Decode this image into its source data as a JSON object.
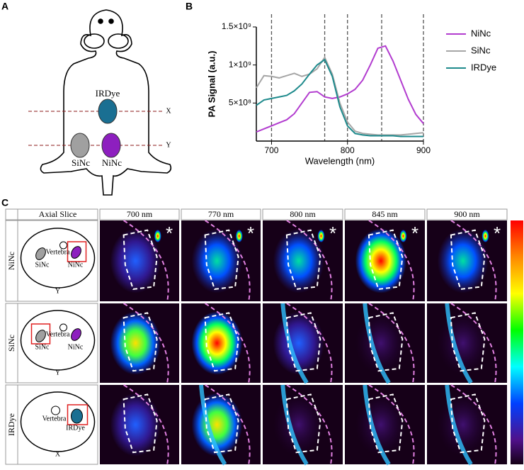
{
  "panel_labels": [
    "A",
    "B",
    "C"
  ],
  "panel_a": {
    "labels": {
      "irdye": "IRDye",
      "sinc": "SiNc",
      "ninc": "NiNc",
      "x": "X",
      "y": "Y"
    }
  },
  "chart_data": {
    "type": "line",
    "ylabel": "PA Signal (a.u.)",
    "xlabel": "Wavelength (nm)",
    "x": [
      680,
      690,
      700,
      710,
      720,
      730,
      740,
      750,
      760,
      770,
      780,
      790,
      800,
      810,
      820,
      830,
      840,
      850,
      860,
      870,
      880,
      890,
      900
    ],
    "series": [
      {
        "name": "NiNc",
        "color": "#b23ccf",
        "values": [
          120000000,
          160000000,
          200000000,
          240000000,
          280000000,
          360000000,
          500000000,
          640000000,
          650000000,
          580000000,
          560000000,
          580000000,
          620000000,
          680000000,
          800000000,
          1000000000,
          1220000000,
          1250000000,
          1050000000,
          800000000,
          550000000,
          350000000,
          230000000
        ]
      },
      {
        "name": "SiNc",
        "color": "#a6a6a6",
        "values": [
          700000000,
          860000000,
          850000000,
          830000000,
          860000000,
          890000000,
          850000000,
          880000000,
          950000000,
          1100000000,
          880000000,
          500000000,
          250000000,
          130000000,
          100000000,
          90000000,
          80000000,
          80000000,
          80000000,
          80000000,
          90000000,
          100000000,
          110000000
        ]
      },
      {
        "name": "IRDye",
        "color": "#1e8a8c",
        "values": [
          470000000,
          540000000,
          560000000,
          580000000,
          600000000,
          660000000,
          750000000,
          880000000,
          1000000000,
          1070000000,
          850000000,
          450000000,
          200000000,
          100000000,
          80000000,
          70000000,
          70000000,
          70000000,
          70000000,
          60000000,
          60000000,
          60000000,
          60000000
        ]
      }
    ],
    "xlim": [
      680,
      900
    ],
    "xticks": [
      700,
      800,
      900
    ],
    "ylim": [
      0,
      1500000000
    ],
    "yticks": [
      {
        "value": 500000000,
        "label": "5×10⁸"
      },
      {
        "value": 1000000000,
        "label": "1×10⁹"
      },
      {
        "value": 1500000000,
        "label": "1.5×10⁹"
      }
    ],
    "vlines": [
      700,
      770,
      800,
      845,
      900
    ],
    "legend": "right"
  },
  "panel_c": {
    "header": [
      "Axial Slice",
      "700 nm",
      "770 nm",
      "800 nm",
      "845 nm",
      "900 nm"
    ],
    "rows": [
      {
        "label": "NiNc",
        "slice": {
          "vertebra": "Vertebra",
          "sinc": "SiNc",
          "ninc": "NiNc",
          "plane": "Y"
        }
      },
      {
        "label": "SiNc",
        "slice": {
          "vertebra": "Vertebra",
          "sinc": "SiNc",
          "ninc": "NiNc",
          "plane": "Y"
        }
      },
      {
        "label": "IRDye",
        "slice": {
          "vertebra": "Vertebra",
          "irdye": "IRDye",
          "plane": "X"
        }
      }
    ],
    "marker": "*"
  }
}
